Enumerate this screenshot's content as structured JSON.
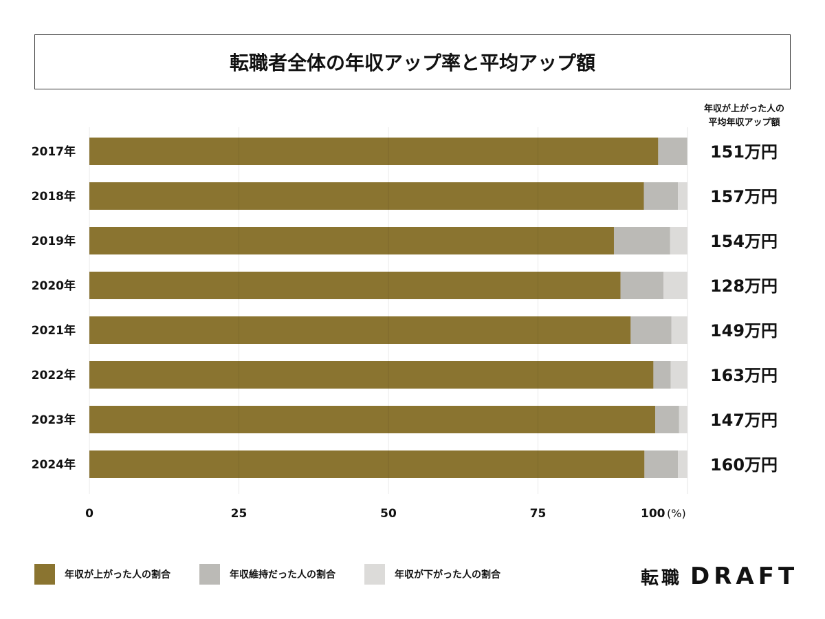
{
  "chart_data": {
    "type": "bar",
    "orientation": "horizontal",
    "stacked": true,
    "title": "転職者全体の年収アップ率と平均アップ額",
    "categories": [
      "2017年",
      "2018年",
      "2019年",
      "2020年",
      "2021年",
      "2022年",
      "2023年",
      "2024年"
    ],
    "series": [
      {
        "name": "年収が上がった人の割合",
        "color": "#8a7430",
        "values": [
          95.1,
          92.7,
          87.7,
          88.8,
          90.5,
          94.3,
          94.6,
          92.8
        ]
      },
      {
        "name": "年収維持だった人の割合",
        "color": "#bbbab6",
        "values": [
          4.9,
          5.7,
          9.4,
          7.2,
          6.8,
          2.9,
          4.0,
          5.6
        ]
      },
      {
        "name": "年収が下がった人の割合",
        "color": "#dcdbd9",
        "values": [
          0.0,
          1.6,
          2.9,
          4.0,
          2.7,
          2.8,
          1.4,
          1.6
        ]
      }
    ],
    "xlim": [
      0,
      100
    ],
    "xticks": [
      "0",
      "25",
      "50",
      "75",
      "100"
    ],
    "xunit": "(%)",
    "grid": true,
    "legend_position": "bottom-left",
    "side_label": [
      "年収が上がった人の",
      "平均年収アップ額"
    ],
    "side_values": [
      "151万円",
      "157万円",
      "154万円",
      "128万円",
      "149万円",
      "163万円",
      "147万円",
      "160万円"
    ]
  },
  "logo": {
    "kanji": "転職",
    "latin": "DRAFT"
  }
}
